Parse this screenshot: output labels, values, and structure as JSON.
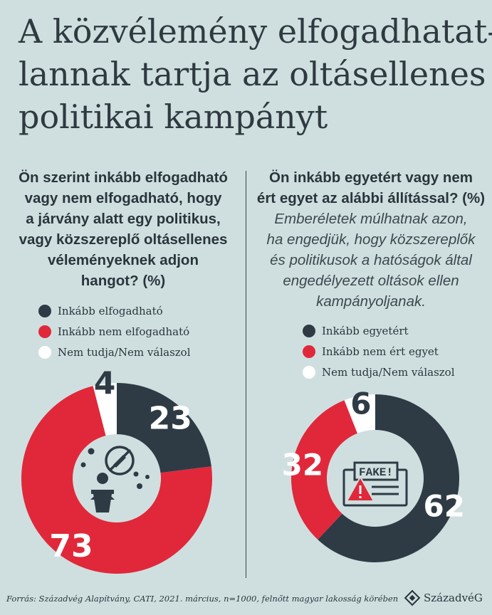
{
  "title": {
    "lines": [
      "A közvélemény elfogadhatat-",
      "lannak tartja az oltásellenes",
      "politikai kampányt"
    ]
  },
  "colors": {
    "dark": "#2e3b45",
    "red": "#e0283a",
    "white": "#ffffff",
    "background": "#cfdfe0"
  },
  "left": {
    "question_lines": [
      "Ön szerint inkább elfogadható",
      "vagy nem elfogadható, hogy",
      "a járvány alatt egy politikus,",
      "vagy közszereplő oltásellenes",
      "véleményeknek adjon",
      "hangot? (%)"
    ]
  },
  "right": {
    "question_lines": [
      "Ön inkább egyetért vagy nem",
      "ért egyet az alábbi állítással? (%)"
    ],
    "statement_lines": [
      "Emberéletek múlhatnak azon,",
      "ha engedjük, hogy közszereplők",
      "és politikusok a hatóságok által",
      "engedélyezett oltások ellen",
      "kampányoljanak."
    ]
  },
  "chart_data": [
    {
      "type": "pie",
      "variant": "donut",
      "title": "Ön szerint inkább elfogadható vagy nem elfogadható, hogy a járvány alatt egy politikus, vagy közszereplő oltásellenes véleményeknek adjon hangot? (%)",
      "categories": [
        "Inkább elfogadható",
        "Inkább nem elfogadható",
        "Nem tudja/Nem válaszol"
      ],
      "values": [
        23,
        73,
        4
      ],
      "labels": [
        "23",
        "73",
        "4"
      ],
      "colors": [
        "#2e3b45",
        "#e0283a",
        "#ffffff"
      ],
      "legend_placement": "top"
    },
    {
      "type": "pie",
      "variant": "donut",
      "title": "Ön inkább egyetért vagy nem ért egyet az alábbi állítással? (%)",
      "categories": [
        "Inkább egyetért",
        "Inkább nem ért egyet",
        "Nem tudja/Nem válaszol"
      ],
      "values": [
        62,
        32,
        6
      ],
      "labels": [
        "62",
        "32",
        "6"
      ],
      "colors": [
        "#2e3b45",
        "#e0283a",
        "#ffffff"
      ],
      "legend_placement": "top"
    }
  ],
  "icons": {
    "left_center": "politician-antivax-icon",
    "right_center": "fake-news-icon",
    "fake_text": "FAKE!"
  },
  "footer": {
    "source_label": "Forrás:",
    "source_text": " Századvég Alapítvány, CATI, 2021. március, n=1000, felnőtt magyar lakosság körében",
    "logo_text": "SzázadvéG"
  }
}
